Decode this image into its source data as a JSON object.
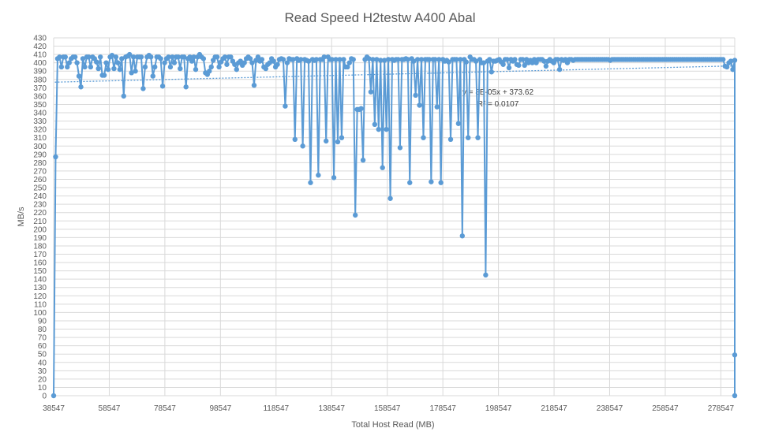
{
  "chart_data": {
    "type": "line",
    "title": "Read Speed H2testw A400 Abal",
    "xlabel": "Total Host Read  (MB)",
    "ylabel": "MB/s",
    "xlim": [
      38547,
      283547
    ],
    "ylim": [
      0,
      430
    ],
    "x_ticks": [
      38547,
      58547,
      78547,
      98547,
      118547,
      138547,
      158547,
      178547,
      198547,
      218547,
      238547,
      258547,
      278547
    ],
    "y_tick_step": 10,
    "grid": true,
    "legend": "none",
    "series_color": "#5b9bd5",
    "trendline": {
      "equation": "y = 8E-05x + 373.62",
      "r_squared": "R² = 0.0107",
      "slope": 8e-05,
      "intercept": 373.62
    },
    "series": [
      {
        "x": [
          38547,
          39247,
          39947,
          40647,
          41347,
          42047,
          42747,
          43447,
          44147,
          44847,
          45547,
          46247,
          46947,
          47647,
          48347,
          49047,
          49747,
          50447,
          51147,
          51847,
          52547,
          53247,
          53947,
          54647,
          55347,
          56047,
          56747,
          57447,
          58147,
          58847,
          59547,
          60247,
          60947,
          61647,
          62347,
          63047,
          63747,
          64447,
          65147,
          65847,
          66547,
          67247,
          67947,
          68647,
          69347,
          70047,
          70747,
          71447,
          72147,
          72847,
          73547,
          74247,
          74947,
          75647,
          76347,
          77047,
          77747,
          78447,
          79147,
          79847,
          80547,
          81247,
          81947,
          82647,
          83347,
          84047,
          84747,
          85447,
          86147,
          86847,
          87547,
          88247,
          88947,
          89647,
          90347,
          91047,
          91747,
          92447,
          93147,
          93847,
          94547,
          95247,
          95947,
          96647,
          97347,
          98047,
          98747,
          99447,
          100147,
          100847,
          101547,
          102247,
          102947,
          103647,
          104347,
          105047,
          105747,
          106447,
          107147,
          107847,
          108547,
          109247,
          109947,
          110647,
          111347,
          112047,
          112747,
          113447,
          114147,
          114847,
          115547,
          116247,
          116947,
          117647,
          118347,
          119047,
          119747,
          120447,
          121147,
          121847,
          122547,
          123247,
          123947,
          124647,
          125347,
          126047,
          126747,
          127447,
          128147,
          128847,
          129547,
          130247,
          130947,
          131647,
          132347,
          133047,
          133747,
          134447,
          135147,
          135847,
          136547,
          137247,
          137947,
          138647,
          139347,
          140047,
          140747,
          141447,
          142147,
          142847,
          143547,
          144247,
          144947,
          145647,
          146347,
          147047,
          147747,
          148447,
          149147,
          149847,
          150547,
          151247,
          151947,
          152647,
          153347,
          154047,
          154747,
          155447,
          156147,
          156847,
          157547,
          158247,
          158947,
          159647,
          160347,
          161047,
          161747,
          162447,
          163147,
          163847,
          164547,
          165247,
          165947,
          166647,
          167347,
          168047,
          168747,
          169447,
          170147,
          170847,
          171547,
          172247,
          172947,
          173647,
          174347,
          175047,
          175747,
          176447,
          177147,
          177847,
          178547,
          179247,
          179947,
          180647,
          181347,
          182047,
          182747,
          183447,
          184147,
          184847,
          185547,
          186247,
          186947,
          187647,
          188347,
          189047,
          189747,
          190447,
          191147,
          191847,
          192547,
          193247,
          193947,
          194647,
          195347,
          196047,
          196747,
          197447,
          198147,
          198847,
          199547,
          200247,
          200947,
          201647,
          202347,
          203047,
          203747,
          204447,
          205147,
          205847,
          206547,
          207247,
          207947,
          208647,
          209347,
          210047,
          210747,
          211447,
          212147,
          212847,
          213547,
          214247,
          214947,
          215647,
          216347,
          217047,
          217747,
          218447,
          219147,
          219847,
          220547,
          221247,
          221947,
          222647,
          223347,
          224047,
          224747,
          225447,
          226147,
          226847,
          227547,
          228247,
          228947,
          229647,
          230347,
          231047,
          231747,
          232447,
          233147,
          233847,
          234547,
          235247,
          235947,
          236647,
          237347,
          238047,
          238747,
          239447,
          240147,
          240847,
          241547,
          242247,
          242947,
          243647,
          244347,
          245047,
          245747,
          246447,
          247147,
          247847,
          248547,
          249247,
          249947,
          250647,
          251347,
          252047,
          252747,
          253447,
          254147,
          254847,
          255547,
          256247,
          256947,
          257647,
          258347,
          259047,
          259747,
          260447,
          261147,
          261847,
          262547,
          263247,
          263947,
          264647,
          265347,
          266047,
          266747,
          267447,
          268147,
          268847,
          269547,
          270247,
          270947,
          271647,
          272347,
          273047,
          273747,
          274447,
          275147,
          275847,
          276547,
          277247,
          277947,
          278647,
          279347,
          280047,
          280747,
          281447,
          282147,
          282847,
          283547,
          283547,
          283547
        ],
        "values": [
          0,
          287,
          405,
          407,
          395,
          407,
          407,
          395,
          400,
          405,
          407,
          407,
          400,
          384,
          371,
          405,
          395,
          407,
          407,
          395,
          407,
          405,
          401,
          393,
          407,
          385,
          385,
          400,
          392,
          407,
          409,
          393,
          407,
          400,
          392,
          405,
          360,
          407,
          408,
          410,
          388,
          407,
          390,
          407,
          407,
          407,
          369,
          395,
          407,
          409,
          407,
          384,
          395,
          407,
          407,
          405,
          372,
          400,
          405,
          407,
          395,
          407,
          400,
          407,
          407,
          393,
          407,
          407,
          371,
          405,
          407,
          402,
          407,
          392,
          407,
          410,
          407,
          405,
          388,
          386,
          390,
          395,
          403,
          407,
          407,
          395,
          401,
          405,
          407,
          398,
          407,
          407,
          402,
          398,
          392,
          400,
          402,
          397,
          400,
          405,
          407,
          405,
          400,
          373,
          403,
          407,
          402,
          404,
          395,
          393,
          398,
          400,
          405,
          402,
          395,
          398,
          404,
          405,
          404,
          348,
          400,
          405,
          404,
          404,
          308,
          405,
          403,
          404,
          300,
          404,
          403,
          402,
          256,
          404,
          403,
          404,
          265,
          404,
          404,
          407,
          306,
          407,
          404,
          404,
          262,
          404,
          305,
          404,
          310,
          404,
          395,
          395,
          400,
          405,
          404,
          217,
          344,
          344,
          345,
          283,
          404,
          407,
          405,
          365,
          404,
          326,
          404,
          320,
          403,
          274,
          403,
          320,
          404,
          237,
          404,
          403,
          404,
          404,
          298,
          404,
          404,
          405,
          404,
          256,
          405,
          402,
          361,
          404,
          349,
          404,
          310,
          404,
          404,
          404,
          257,
          404,
          404,
          347,
          404,
          256,
          404,
          402,
          403,
          401,
          308,
          404,
          404,
          404,
          327,
          404,
          192,
          404,
          401,
          310,
          407,
          404,
          404,
          402,
          310,
          404,
          400,
          400,
          145,
          402,
          404,
          389,
          402,
          402,
          403,
          404,
          401,
          398,
          404,
          404,
          394,
          404,
          402,
          404,
          398,
          397,
          404,
          404,
          397,
          404,
          400,
          403,
          400,
          404,
          400,
          404,
          404,
          404,
          402,
          396,
          402,
          404,
          402,
          400,
          404,
          404,
          392,
          404,
          403,
          404,
          400,
          404,
          404,
          403,
          404,
          404,
          404,
          404,
          404,
          404,
          404,
          404,
          404,
          404,
          404,
          404,
          404,
          404,
          404,
          404,
          404,
          404,
          403,
          404,
          404,
          404,
          404,
          404,
          404,
          404,
          404,
          404,
          404,
          404,
          404,
          404,
          404,
          404,
          404,
          404,
          404,
          404,
          404,
          404,
          404,
          404,
          404,
          404,
          404,
          404,
          404,
          404,
          404,
          404,
          404,
          404,
          404,
          404,
          404,
          404,
          404,
          404,
          404,
          404,
          404,
          404,
          404,
          404,
          404,
          404,
          404,
          404,
          404,
          404,
          404,
          404,
          404,
          404,
          404,
          404,
          404,
          396,
          395,
          400,
          402,
          392,
          403,
          49,
          0
        ]
      }
    ]
  }
}
